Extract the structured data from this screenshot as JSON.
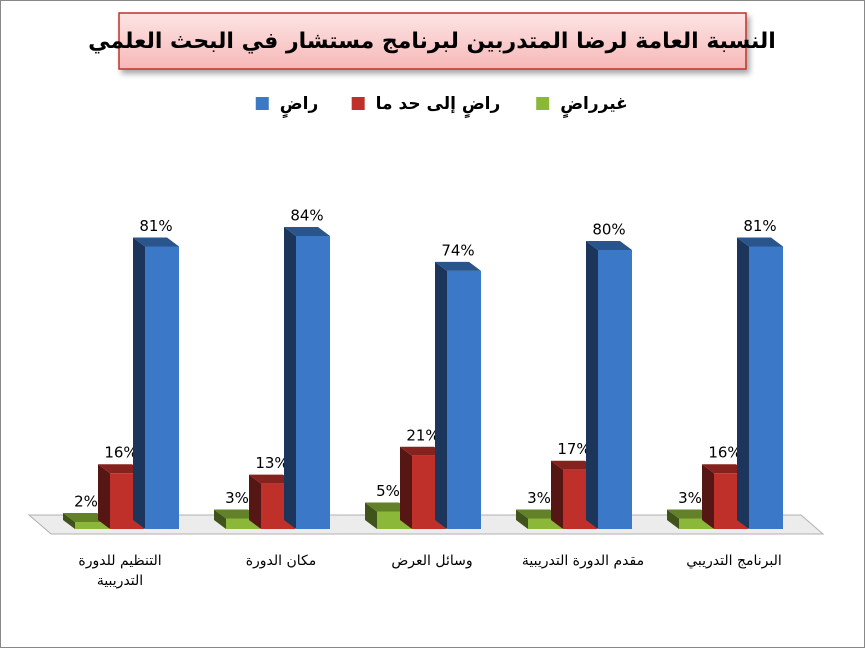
{
  "chart_data": {
    "type": "bar3d",
    "title": "النسبة العامة لرضا المتدربين لبرنامج مستشار في البحث العلمي",
    "categories": [
      "التنظيم للدورة التدريبية",
      "مكان الدورة",
      "وسائل العرض",
      "مقدم الدورة التدريبية",
      "البرنامج التدريبي"
    ],
    "series": [
      {
        "name": "غيرراضٍ",
        "color": "#8cb83a",
        "values": [
          2,
          3,
          5,
          3,
          3
        ],
        "value_labels": [
          "2%",
          "3%",
          "5%",
          "3%",
          "3%"
        ]
      },
      {
        "name": "راضٍ إلى حد ما",
        "color": "#c0302b",
        "values": [
          16,
          13,
          21,
          17,
          16
        ],
        "value_labels": [
          "16%",
          "13%",
          "21%",
          "17%",
          "16%"
        ]
      },
      {
        "name": "راضٍ",
        "color": "#3b78c8",
        "values": [
          81,
          84,
          74,
          80,
          81
        ],
        "value_labels": [
          "81%",
          "84%",
          "74%",
          "80%",
          "81%"
        ]
      }
    ]
  }
}
